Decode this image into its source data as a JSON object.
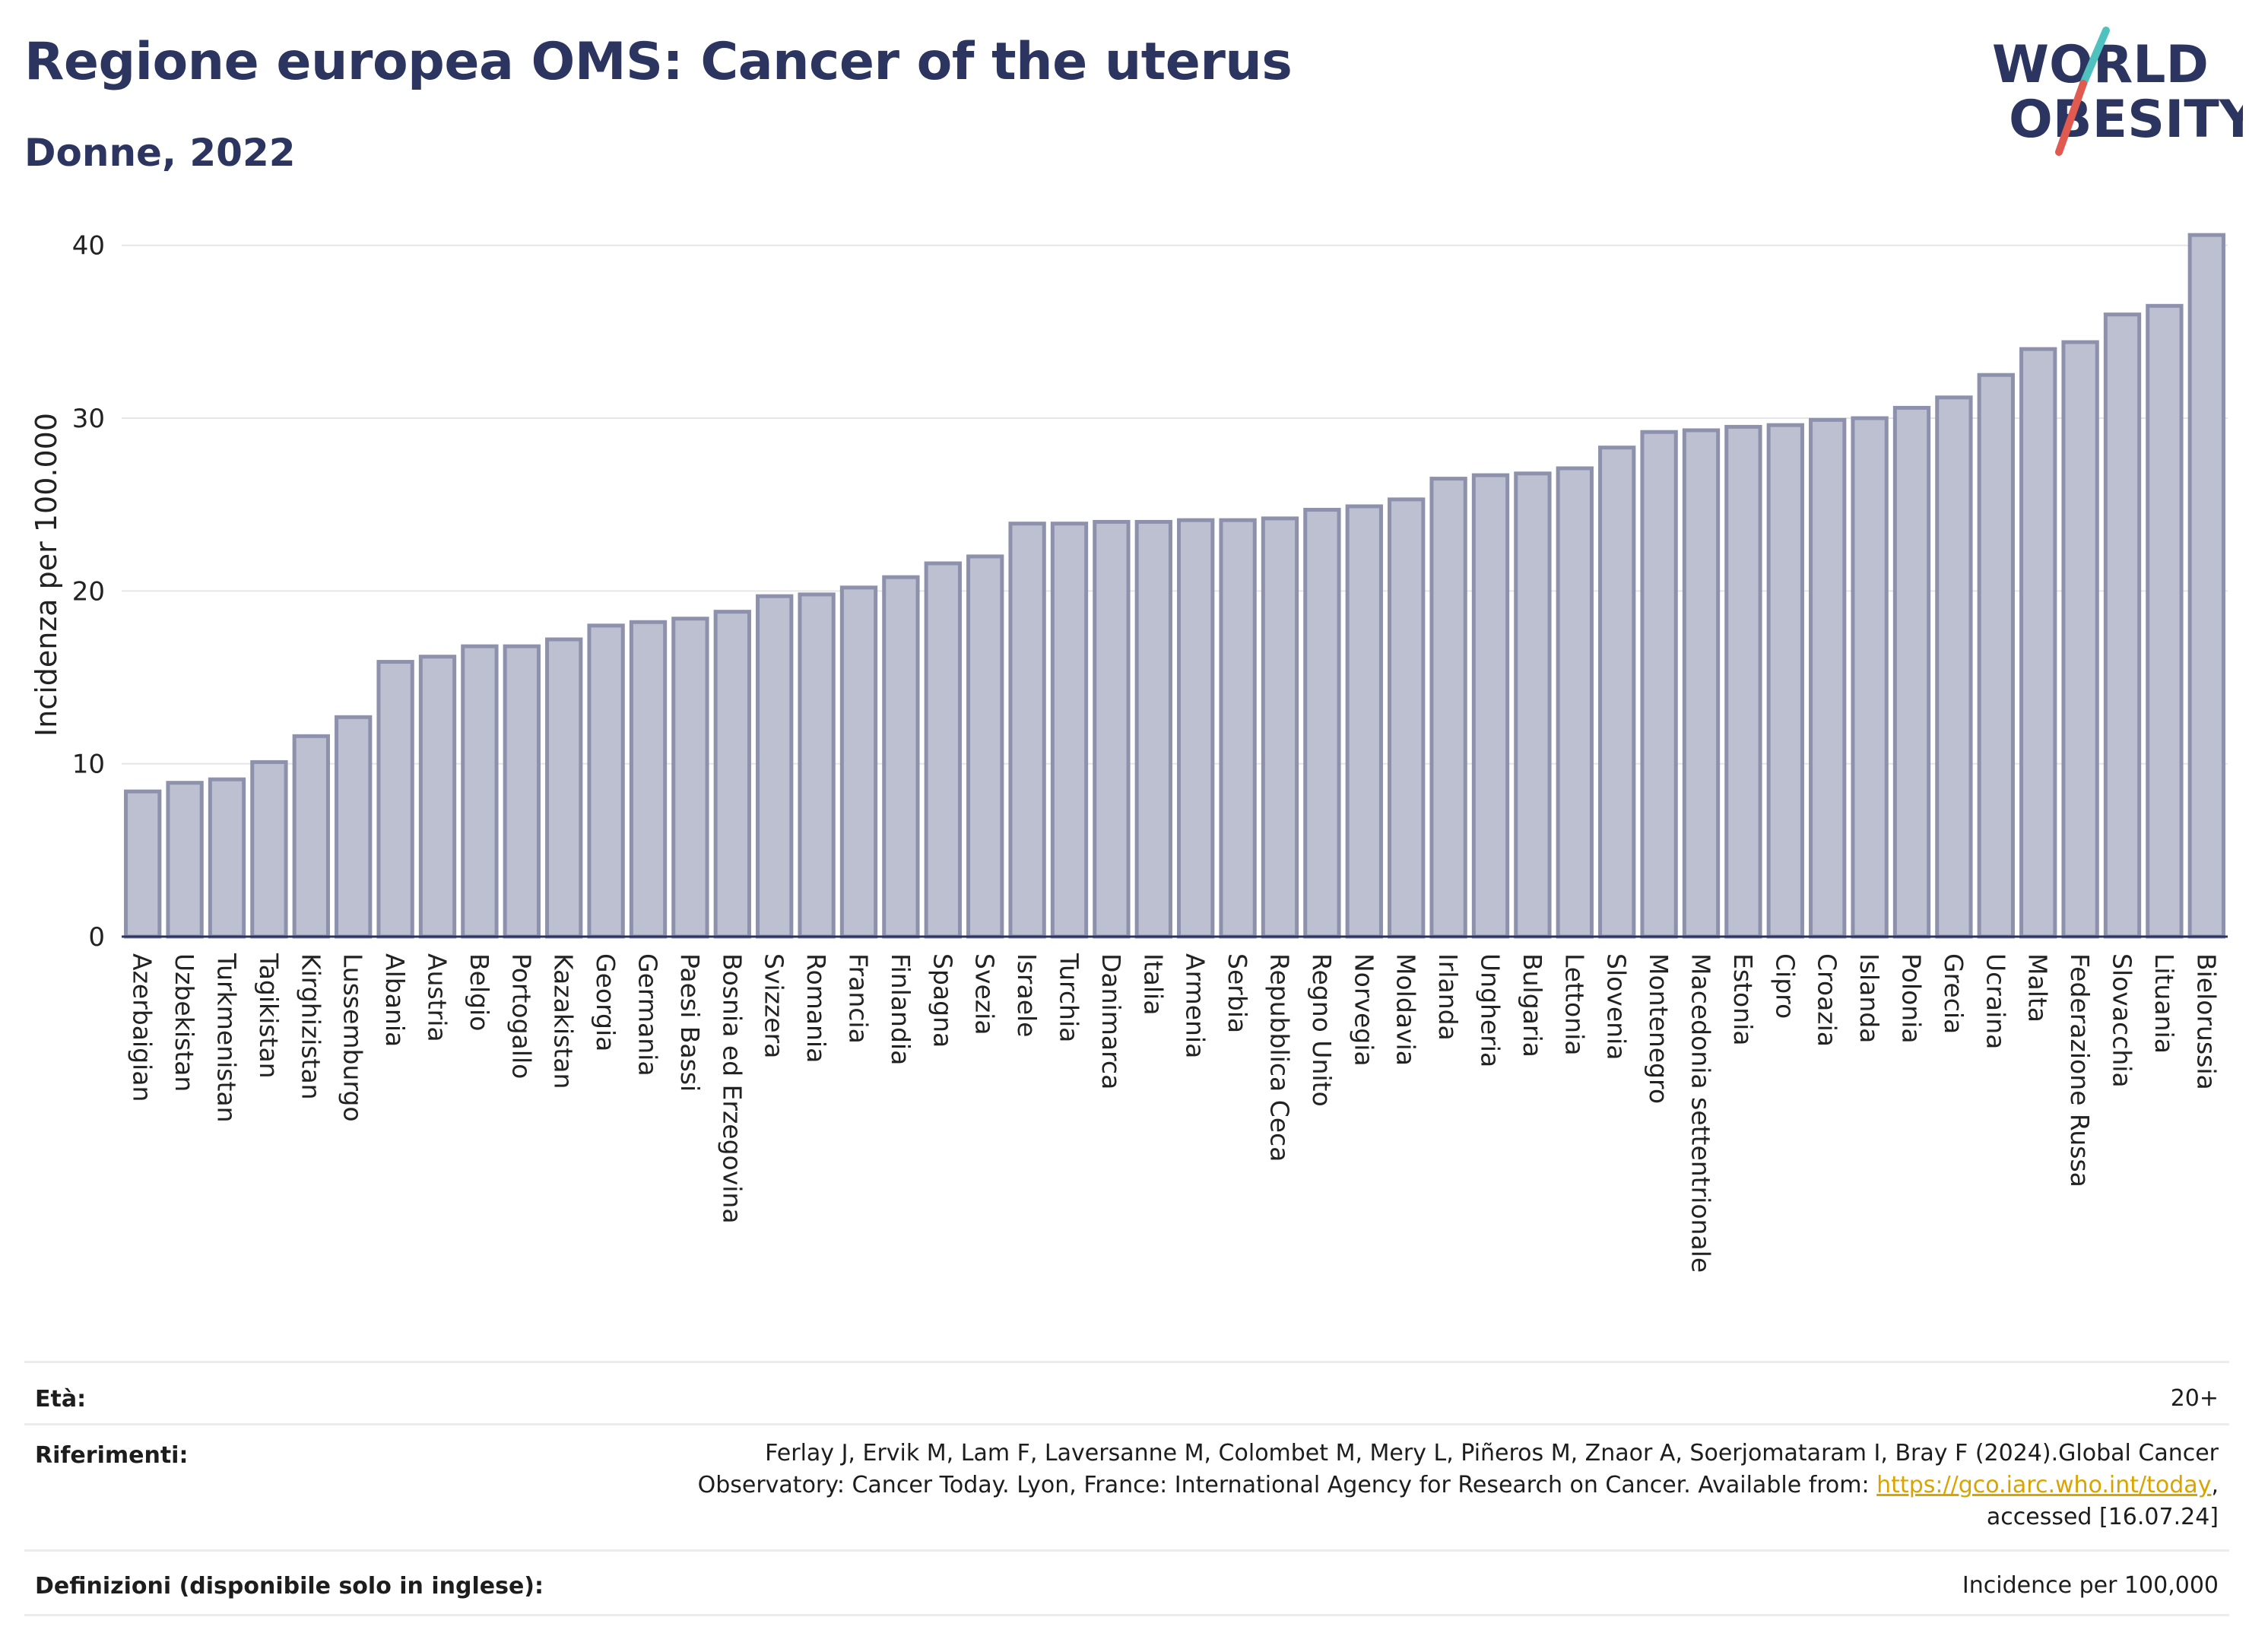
{
  "header": {
    "title": "Regione europea OMS: Cancer of the uterus",
    "subtitle": "Donne, 2022"
  },
  "logo": {
    "line1": "WORLD",
    "line2": "OBESITY",
    "accent_colors": [
      "#4fc2c0",
      "#e05a4f"
    ]
  },
  "chart_data": {
    "type": "bar",
    "ylabel": "Incidenza per 100.000",
    "ylim": [
      0,
      41
    ],
    "yticks": [
      0,
      10,
      20,
      30,
      40
    ],
    "grid": true,
    "bar_color": "#bdc0d1",
    "bar_edge_color": "#8d91ab",
    "categories": [
      "Azerbaigian",
      "Uzbekistan",
      "Turkmenistan",
      "Tagikistan",
      "Kirghizistan",
      "Lussemburgo",
      "Albania",
      "Austria",
      "Belgio",
      "Portogallo",
      "Kazakistan",
      "Georgia",
      "Germania",
      "Paesi Bassi",
      "Bosnia ed Erzegovina",
      "Svizzera",
      "Romania",
      "Francia",
      "Finlandia",
      "Spagna",
      "Svezia",
      "Israele",
      "Turchia",
      "Danimarca",
      "Italia",
      "Armenia",
      "Serbia",
      "Repubblica Ceca",
      "Regno Unito",
      "Norvegia",
      "Moldavia",
      "Irlanda",
      "Ungheria",
      "Bulgaria",
      "Lettonia",
      "Slovenia",
      "Montenegro",
      "Macedonia settentrionale",
      "Estonia",
      "Cipro",
      "Croazia",
      "Islanda",
      "Polonia",
      "Grecia",
      "Ucraina",
      "Malta",
      "Federazione Russa",
      "Slovacchia",
      "Lituania",
      "Bielorussia"
    ],
    "values": [
      8.4,
      8.9,
      9.1,
      10.1,
      11.6,
      12.7,
      15.9,
      16.2,
      16.8,
      16.8,
      17.2,
      18.0,
      18.2,
      18.4,
      18.8,
      19.7,
      19.8,
      20.2,
      20.8,
      21.6,
      22.0,
      23.9,
      23.9,
      24.0,
      24.0,
      24.1,
      24.1,
      24.2,
      24.7,
      24.9,
      25.3,
      26.5,
      26.7,
      26.8,
      27.1,
      28.3,
      29.2,
      29.3,
      29.5,
      29.6,
      29.9,
      30.0,
      30.6,
      31.2,
      32.5,
      34.0,
      34.4,
      36.0,
      36.5,
      40.6
    ]
  },
  "info": {
    "age_label": "Età:",
    "age_value": "20+",
    "refs_label": "Riferimenti:",
    "refs_line1": "Ferlay J, Ervik M, Lam F, Laversanne M, Colombet M, Mery L, Piñeros M, Znaor A, Soerjomataram I, Bray F (2024).Global Cancer",
    "refs_line2_pre": "Observatory: Cancer Today. Lyon, France: International Agency for Research on Cancer. Available from: ",
    "refs_link": "https://gco.iarc.who.int/today",
    "refs_line2_post": ",",
    "refs_line3": "accessed [16.07.24]",
    "defs_label": "Definizioni (disponibile solo in inglese):",
    "defs_value": "Incidence per 100,000"
  }
}
